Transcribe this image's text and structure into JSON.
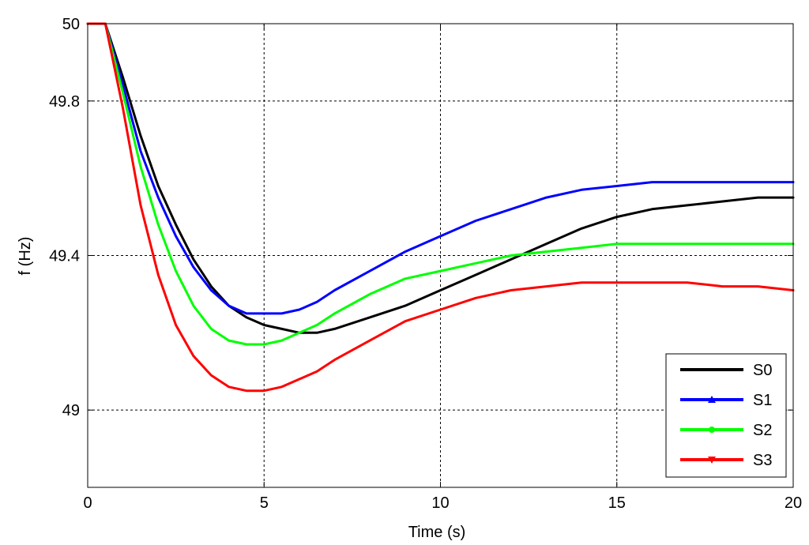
{
  "chart_data": {
    "type": "line",
    "xlabel": "Time (s)",
    "ylabel": "f (Hz)",
    "xlim": [
      0,
      20
    ],
    "ylim": [
      48.8,
      50
    ],
    "xticks": [
      0,
      5,
      10,
      15,
      20
    ],
    "xtick_labels": [
      "0",
      "5",
      "10",
      "15",
      "20"
    ],
    "yticks": [
      49,
      49.4,
      49.8,
      50
    ],
    "ytick_labels": [
      "49",
      "49.4",
      "49.8",
      "50"
    ],
    "grid": true,
    "legend_position": "bottom-right",
    "series": [
      {
        "name": "S0",
        "color": "#000000",
        "marker": "none",
        "x": [
          0,
          0.5,
          1,
          1.5,
          2,
          2.5,
          3,
          3.5,
          4,
          4.5,
          5,
          5.5,
          6,
          6.5,
          7,
          8,
          9,
          10,
          11,
          12,
          13,
          14,
          15,
          16,
          17,
          18,
          19,
          20
        ],
        "y": [
          50,
          50,
          49.86,
          49.71,
          49.58,
          49.48,
          49.39,
          49.32,
          49.27,
          49.24,
          49.22,
          49.21,
          49.2,
          49.2,
          49.21,
          49.24,
          49.27,
          49.31,
          49.35,
          49.39,
          49.43,
          49.47,
          49.5,
          49.52,
          49.53,
          49.54,
          49.55,
          49.55
        ]
      },
      {
        "name": "S1",
        "color": "#0000ff",
        "marker": "triangle",
        "x": [
          0,
          0.5,
          1,
          1.5,
          2,
          2.5,
          3,
          3.5,
          4,
          4.5,
          5,
          5.5,
          6,
          6.5,
          7,
          8,
          9,
          10,
          11,
          12,
          13,
          14,
          15,
          16,
          17,
          18,
          19,
          20
        ],
        "y": [
          50,
          50,
          49.84,
          49.67,
          49.55,
          49.45,
          49.37,
          49.31,
          49.27,
          49.25,
          49.25,
          49.25,
          49.26,
          49.28,
          49.31,
          49.36,
          49.41,
          49.45,
          49.49,
          49.52,
          49.55,
          49.57,
          49.58,
          49.59,
          49.59,
          49.59,
          49.59,
          49.59
        ]
      },
      {
        "name": "S2",
        "color": "#00ff00",
        "marker": "circle",
        "x": [
          0,
          0.5,
          1,
          1.5,
          2,
          2.5,
          3,
          3.5,
          4,
          4.5,
          5,
          5.5,
          6,
          6.5,
          7,
          8,
          9,
          10,
          11,
          12,
          13,
          14,
          15,
          16,
          17,
          18,
          19,
          20
        ],
        "y": [
          50,
          50,
          49.82,
          49.63,
          49.48,
          49.36,
          49.27,
          49.21,
          49.18,
          49.17,
          49.17,
          49.18,
          49.2,
          49.22,
          49.25,
          49.3,
          49.34,
          49.36,
          49.38,
          49.4,
          49.41,
          49.42,
          49.43,
          49.43,
          49.43,
          49.43,
          49.43,
          49.43
        ]
      },
      {
        "name": "S3",
        "color": "#ff0000",
        "marker": "triangle-down",
        "x": [
          0,
          0.5,
          1,
          1.5,
          2,
          2.5,
          3,
          3.5,
          4,
          4.5,
          5,
          5.5,
          6,
          6.5,
          7,
          8,
          9,
          10,
          11,
          12,
          13,
          14,
          15,
          16,
          17,
          18,
          19,
          20
        ],
        "y": [
          50,
          50,
          49.78,
          49.53,
          49.35,
          49.22,
          49.14,
          49.09,
          49.06,
          49.05,
          49.05,
          49.06,
          49.08,
          49.1,
          49.13,
          49.18,
          49.23,
          49.26,
          49.29,
          49.31,
          49.32,
          49.33,
          49.33,
          49.33,
          49.33,
          49.32,
          49.32,
          49.31
        ]
      }
    ]
  }
}
